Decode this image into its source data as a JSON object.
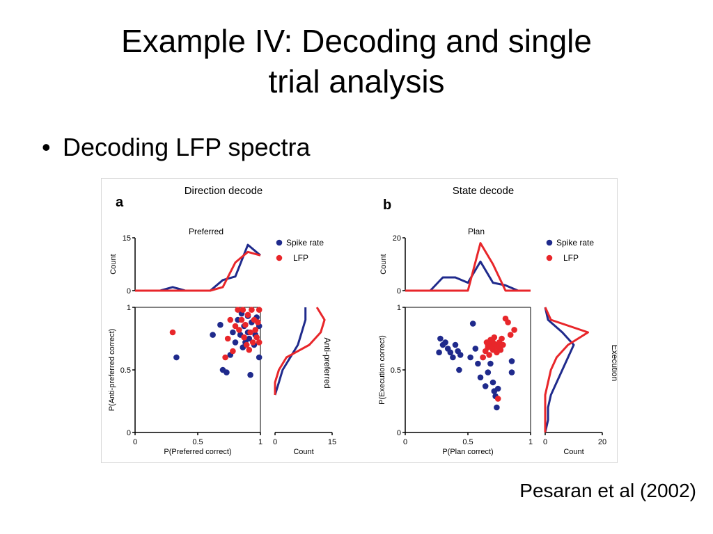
{
  "slide": {
    "title_line1": "Example IV:  Decoding and single",
    "title_line2": "trial analysis",
    "bullet_marker": "•",
    "bullet": "Decoding LFP spectra",
    "citation": "Pesaran et al (2002)"
  },
  "colors": {
    "spike": "#1f2a8c",
    "lfp": "#e8262a",
    "axis": "#000000"
  },
  "chart_data": [
    {
      "panel": "a",
      "type": "scatter",
      "title": "Direction decode",
      "top_hist_title": "Preferred",
      "side_hist_title": "Anti-preferred",
      "xlabel": "P(Preferred correct)",
      "ylabel": "P(Anti-preferred correct)",
      "xlim": [
        0,
        1
      ],
      "ylim": [
        0,
        1
      ],
      "xticks": [
        "0",
        "0.5",
        "1"
      ],
      "yticks": [
        "0",
        "0.5",
        "1"
      ],
      "legend": [
        "Spike rate",
        "LFP"
      ],
      "top_hist": {
        "ylabel": "Count",
        "ylim": [
          0,
          15
        ],
        "yticks": [
          "0",
          "15"
        ],
        "x": [
          0,
          0.1,
          0.2,
          0.3,
          0.4,
          0.5,
          0.6,
          0.7,
          0.8,
          0.9,
          1.0
        ],
        "spike": [
          0,
          0,
          0,
          1,
          0,
          0,
          0,
          3,
          4,
          13,
          10
        ],
        "lfp": [
          0,
          0,
          0,
          0,
          0,
          0,
          0,
          1,
          8,
          11,
          10
        ]
      },
      "side_hist": {
        "xlabel": "Count",
        "xlim": [
          0,
          15
        ],
        "xticks": [
          "0",
          "15"
        ],
        "y": [
          0.3,
          0.4,
          0.5,
          0.6,
          0.7,
          0.8,
          0.9,
          1.0
        ],
        "spike": [
          0,
          1,
          2,
          4,
          6,
          7,
          8,
          8
        ],
        "lfp": [
          0,
          0,
          1,
          3,
          9,
          12,
          13,
          11
        ]
      },
      "spike_points": [
        [
          0.33,
          0.6
        ],
        [
          0.62,
          0.78
        ],
        [
          0.68,
          0.86
        ],
        [
          0.7,
          0.5
        ],
        [
          0.73,
          0.48
        ],
        [
          0.76,
          0.62
        ],
        [
          0.78,
          0.8
        ],
        [
          0.8,
          0.72
        ],
        [
          0.82,
          0.9
        ],
        [
          0.84,
          0.78
        ],
        [
          0.85,
          0.95
        ],
        [
          0.86,
          0.68
        ],
        [
          0.87,
          0.85
        ],
        [
          0.88,
          0.72
        ],
        [
          0.9,
          0.8
        ],
        [
          0.9,
          0.93
        ],
        [
          0.91,
          0.75
        ],
        [
          0.92,
          0.46
        ],
        [
          0.93,
          0.88
        ],
        [
          0.95,
          0.7
        ],
        [
          0.97,
          0.92
        ],
        [
          0.99,
          0.6
        ],
        [
          0.99,
          0.85
        ],
        [
          0.96,
          0.78
        ]
      ],
      "lfp_points": [
        [
          0.3,
          0.8
        ],
        [
          0.72,
          0.6
        ],
        [
          0.74,
          0.75
        ],
        [
          0.76,
          0.9
        ],
        [
          0.78,
          0.65
        ],
        [
          0.8,
          0.85
        ],
        [
          0.82,
          0.98
        ],
        [
          0.83,
          0.82
        ],
        [
          0.85,
          0.9
        ],
        [
          0.86,
          0.98
        ],
        [
          0.87,
          0.76
        ],
        [
          0.88,
          0.86
        ],
        [
          0.9,
          0.94
        ],
        [
          0.91,
          0.66
        ],
        [
          0.92,
          0.8
        ],
        [
          0.93,
          0.98
        ],
        [
          0.94,
          0.72
        ],
        [
          0.95,
          0.9
        ],
        [
          0.96,
          0.82
        ],
        [
          0.97,
          0.76
        ],
        [
          0.99,
          0.98
        ],
        [
          0.99,
          0.72
        ],
        [
          0.98,
          0.88
        ],
        [
          0.89,
          0.7
        ]
      ]
    },
    {
      "panel": "b",
      "type": "scatter",
      "title": "State decode",
      "top_hist_title": "Plan",
      "side_hist_title": "Execution",
      "xlabel": "P(Plan correct)",
      "ylabel": "P(Execution correct)",
      "xlim": [
        0,
        1
      ],
      "ylim": [
        0,
        1
      ],
      "xticks": [
        "0",
        "0.5",
        "1"
      ],
      "yticks": [
        "0",
        "0.5",
        "1"
      ],
      "legend": [
        "Spike rate",
        "LFP"
      ],
      "top_hist": {
        "ylabel": "Count",
        "ylim": [
          0,
          20
        ],
        "yticks": [
          "0",
          "20"
        ],
        "x": [
          0,
          0.1,
          0.2,
          0.3,
          0.4,
          0.5,
          0.6,
          0.7,
          0.8,
          0.9,
          1.0
        ],
        "spike": [
          0,
          0,
          0,
          5,
          5,
          3,
          11,
          3,
          2,
          0,
          0
        ],
        "lfp": [
          0,
          0,
          0,
          0,
          0,
          0,
          18,
          10,
          0,
          0,
          0
        ]
      },
      "side_hist": {
        "xlabel": "Count",
        "xlim": [
          0,
          20
        ],
        "xticks": [
          "0",
          "20"
        ],
        "y": [
          0.0,
          0.1,
          0.2,
          0.3,
          0.4,
          0.5,
          0.6,
          0.7,
          0.8,
          0.9,
          1.0
        ],
        "spike": [
          0,
          1,
          1,
          2,
          4,
          6,
          8,
          10,
          6,
          1,
          0
        ],
        "lfp": [
          0,
          0,
          0,
          0,
          1,
          2,
          4,
          8,
          15,
          2,
          0
        ]
      },
      "spike_points": [
        [
          0.27,
          0.64
        ],
        [
          0.28,
          0.75
        ],
        [
          0.3,
          0.7
        ],
        [
          0.32,
          0.72
        ],
        [
          0.34,
          0.67
        ],
        [
          0.36,
          0.64
        ],
        [
          0.38,
          0.6
        ],
        [
          0.4,
          0.7
        ],
        [
          0.42,
          0.65
        ],
        [
          0.43,
          0.5
        ],
        [
          0.44,
          0.62
        ],
        [
          0.52,
          0.6
        ],
        [
          0.54,
          0.87
        ],
        [
          0.56,
          0.67
        ],
        [
          0.58,
          0.55
        ],
        [
          0.6,
          0.44
        ],
        [
          0.62,
          0.6
        ],
        [
          0.64,
          0.37
        ],
        [
          0.66,
          0.48
        ],
        [
          0.68,
          0.55
        ],
        [
          0.7,
          0.4
        ],
        [
          0.71,
          0.33
        ],
        [
          0.72,
          0.29
        ],
        [
          0.73,
          0.2
        ],
        [
          0.74,
          0.35
        ],
        [
          0.76,
          0.66
        ],
        [
          0.85,
          0.57
        ],
        [
          0.85,
          0.48
        ]
      ],
      "lfp_points": [
        [
          0.62,
          0.6
        ],
        [
          0.64,
          0.65
        ],
        [
          0.65,
          0.72
        ],
        [
          0.66,
          0.68
        ],
        [
          0.67,
          0.62
        ],
        [
          0.68,
          0.74
        ],
        [
          0.69,
          0.7
        ],
        [
          0.7,
          0.66
        ],
        [
          0.71,
          0.76
        ],
        [
          0.72,
          0.7
        ],
        [
          0.73,
          0.64
        ],
        [
          0.74,
          0.68
        ],
        [
          0.75,
          0.72
        ],
        [
          0.76,
          0.66
        ],
        [
          0.77,
          0.75
        ],
        [
          0.78,
          0.7
        ],
        [
          0.8,
          0.91
        ],
        [
          0.82,
          0.88
        ],
        [
          0.84,
          0.78
        ],
        [
          0.87,
          0.82
        ],
        [
          0.74,
          0.27
        ],
        [
          0.66,
          0.7
        ],
        [
          0.7,
          0.72
        ]
      ]
    }
  ]
}
